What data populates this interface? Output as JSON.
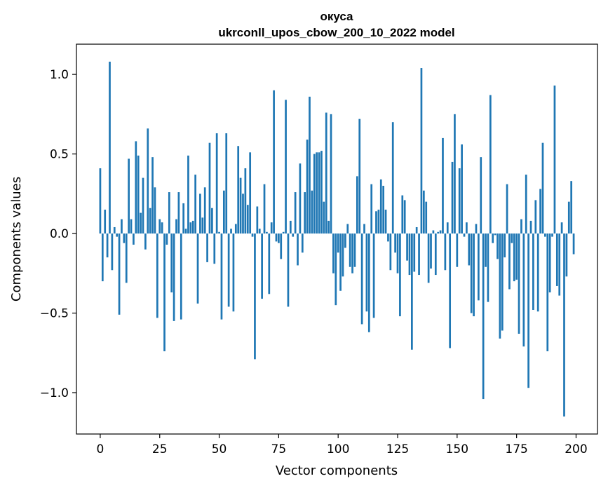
{
  "chart_data": {
    "type": "bar",
    "title": "окуса",
    "subtitle": "ukrconll_upos_cbow_200_10_2022 model",
    "xlabel": "Vector components",
    "ylabel": "Components values",
    "bar_color": "#1f77b4",
    "grid": false,
    "legend": "none",
    "xlim": [
      -10,
      209
    ],
    "ylim": [
      -1.26,
      1.19
    ],
    "xticks": [
      0,
      25,
      50,
      75,
      100,
      125,
      150,
      175,
      200
    ],
    "xtick_labels": [
      "0",
      "25",
      "50",
      "75",
      "100",
      "125",
      "150",
      "175",
      "200"
    ],
    "yticks": [
      -1.0,
      -0.5,
      0.0,
      0.5,
      1.0
    ],
    "ytick_labels": [
      "−1.0",
      "−0.5",
      "0.0",
      "0.5",
      "1.0"
    ],
    "x_start": 0,
    "values": [
      0.41,
      -0.3,
      0.15,
      -0.15,
      1.08,
      -0.23,
      0.04,
      -0.02,
      -0.51,
      0.09,
      -0.06,
      -0.31,
      0.47,
      0.09,
      -0.07,
      0.58,
      0.49,
      0.13,
      0.35,
      -0.1,
      0.66,
      0.16,
      0.48,
      0.29,
      -0.53,
      0.09,
      0.07,
      -0.74,
      -0.07,
      0.26,
      -0.37,
      -0.55,
      0.09,
      0.26,
      -0.54,
      0.19,
      0.03,
      0.49,
      0.07,
      0.08,
      0.37,
      -0.44,
      0.25,
      0.1,
      0.29,
      -0.18,
      0.57,
      0.16,
      -0.19,
      0.63,
      0.01,
      -0.54,
      0.27,
      0.63,
      -0.46,
      0.03,
      -0.49,
      0.06,
      0.55,
      0.35,
      0.25,
      0.41,
      0.18,
      0.51,
      -0.02,
      -0.79,
      0.17,
      0.03,
      -0.41,
      0.31,
      0.01,
      -0.38,
      0.07,
      0.9,
      -0.05,
      -0.06,
      -0.16,
      0.01,
      0.84,
      -0.46,
      0.08,
      -0.02,
      0.26,
      -0.2,
      0.44,
      -0.12,
      0.26,
      0.59,
      0.86,
      0.27,
      0.5,
      0.51,
      0.51,
      0.52,
      0.2,
      0.76,
      0.08,
      0.75,
      -0.25,
      -0.45,
      -0.12,
      -0.36,
      -0.27,
      -0.09,
      0.06,
      -0.21,
      -0.25,
      -0.21,
      0.36,
      0.72,
      -0.57,
      0.06,
      -0.49,
      -0.62,
      0.31,
      -0.53,
      0.14,
      0.15,
      0.34,
      0.3,
      0.15,
      -0.05,
      -0.23,
      0.7,
      -0.12,
      -0.25,
      -0.52,
      0.24,
      0.21,
      -0.17,
      -0.26,
      -0.73,
      -0.24,
      0.04,
      -0.26,
      1.04,
      0.27,
      0.2,
      -0.31,
      -0.22,
      0.02,
      -0.26,
      0.01,
      0.02,
      0.6,
      -0.23,
      0.07,
      -0.72,
      0.45,
      0.75,
      -0.21,
      0.41,
      0.56,
      -0.02,
      0.07,
      -0.2,
      -0.5,
      -0.52,
      0.06,
      -0.42,
      0.48,
      -1.04,
      -0.21,
      -0.43,
      0.87,
      -0.06,
      -0.01,
      -0.16,
      -0.66,
      -0.61,
      -0.15,
      0.31,
      -0.35,
      -0.06,
      -0.3,
      -0.29,
      -0.63,
      0.09,
      -0.71,
      0.37,
      -0.97,
      0.08,
      -0.48,
      0.21,
      -0.49,
      0.28,
      0.57,
      -0.02,
      -0.74,
      -0.37,
      -0.02,
      0.93,
      -0.33,
      -0.39,
      0.07,
      -1.15,
      -0.27,
      0.2,
      0.33,
      -0.13
    ]
  }
}
